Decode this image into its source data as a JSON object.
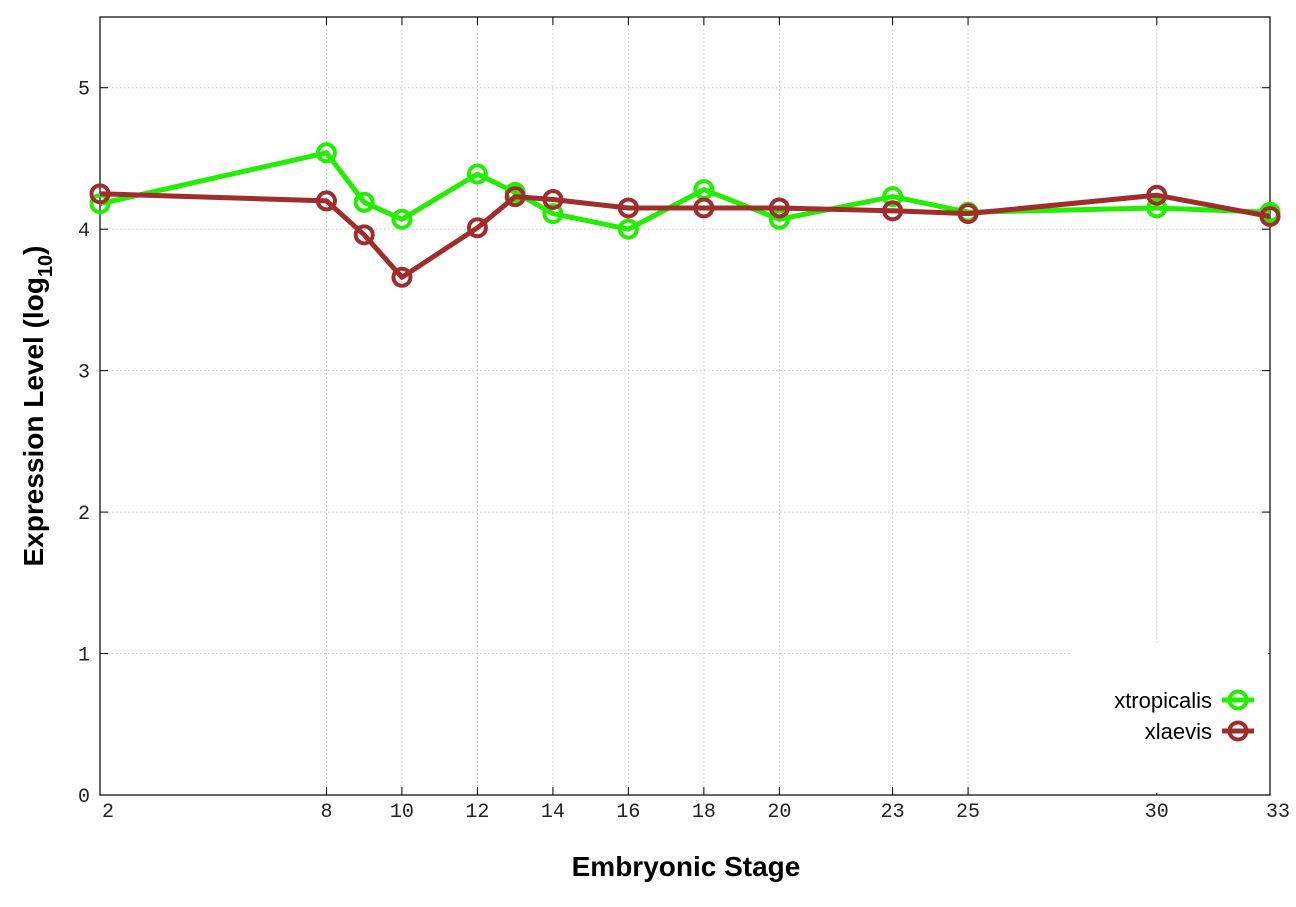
{
  "chart_data": {
    "type": "line",
    "xlabel": "Embryonic Stage",
    "ylabel_main": "Expression Level (log",
    "ylabel_sub": "10",
    "ylabel_close": ")",
    "xlim": [
      2,
      33
    ],
    "ylim": [
      0,
      5.5
    ],
    "x_ticks": [
      2,
      8,
      10,
      12,
      14,
      16,
      18,
      20,
      23,
      25,
      30,
      33
    ],
    "y_ticks": [
      0,
      1,
      2,
      3,
      4,
      5
    ],
    "grid": true,
    "legend_position": "bottom-right",
    "series": [
      {
        "name": "xtropicalis",
        "color": "#22ee00",
        "x": [
          2,
          8,
          9,
          10,
          12,
          13,
          14,
          16,
          18,
          20,
          23,
          25,
          30,
          33
        ],
        "y": [
          4.18,
          4.54,
          4.19,
          4.07,
          4.39,
          4.26,
          4.11,
          4.0,
          4.28,
          4.07,
          4.23,
          4.12,
          4.15,
          4.12
        ]
      },
      {
        "name": "xlaevis",
        "color": "#a02c2c",
        "x": [
          2,
          8,
          9,
          10,
          12,
          13,
          14,
          16,
          18,
          20,
          23,
          25,
          30,
          33
        ],
        "y": [
          4.25,
          4.2,
          3.96,
          3.66,
          4.01,
          4.23,
          4.21,
          4.15,
          4.15,
          4.15,
          4.13,
          4.11,
          4.24,
          4.09
        ]
      }
    ]
  }
}
